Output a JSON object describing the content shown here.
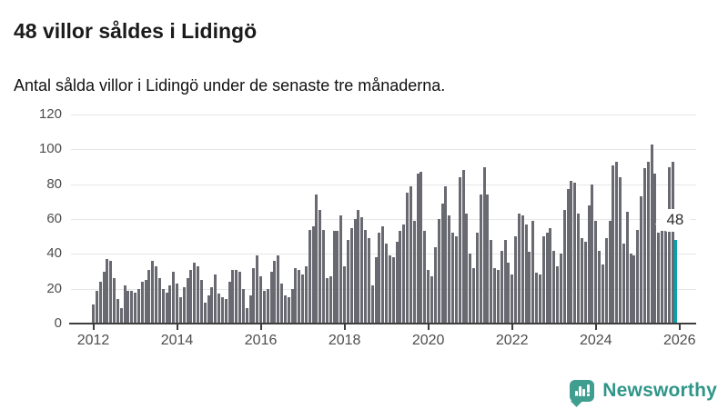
{
  "header": {
    "title": "48 villor såldes i Lidingö",
    "subtitle": "Antal sålda villor i Lidingö under de senaste tre månaderna."
  },
  "chart_data": {
    "type": "bar",
    "title": "48 villor såldes i Lidingö",
    "subtitle": "Antal sålda villor i Lidingö under de senaste tre månaderna.",
    "x_unit": "month",
    "x_start": "2012-01",
    "x_end": "2025-12",
    "values": [
      11,
      19,
      24,
      30,
      37,
      36,
      26,
      14,
      9,
      22,
      19,
      19,
      18,
      20,
      24,
      25,
      31,
      36,
      33,
      26,
      20,
      18,
      22,
      30,
      23,
      15,
      21,
      26,
      31,
      35,
      33,
      25,
      12,
      16,
      21,
      28,
      17,
      15,
      14,
      24,
      31,
      31,
      30,
      20,
      9,
      16,
      32,
      39,
      27,
      19,
      20,
      30,
      36,
      39,
      23,
      16,
      15,
      20,
      32,
      31,
      28,
      33,
      54,
      56,
      74,
      65,
      54,
      26,
      27,
      53,
      53,
      62,
      33,
      48,
      55,
      60,
      65,
      61,
      54,
      49,
      22,
      38,
      52,
      56,
      46,
      39,
      38,
      47,
      53,
      57,
      75,
      79,
      59,
      86,
      87,
      53,
      31,
      27,
      44,
      60,
      69,
      79,
      62,
      52,
      50,
      84,
      88,
      63,
      40,
      32,
      52,
      74,
      90,
      74,
      48,
      32,
      31,
      42,
      48,
      35,
      28,
      50,
      63,
      62,
      57,
      41,
      59,
      29,
      28,
      50,
      52,
      55,
      42,
      33,
      40,
      65,
      77,
      82,
      81,
      63,
      49,
      47,
      68,
      80,
      59,
      42,
      34,
      49,
      59,
      91,
      93,
      84,
      46,
      64,
      40,
      39,
      54,
      73,
      89,
      93,
      103,
      86,
      52,
      53,
      57,
      90,
      93,
      48
    ],
    "ylim": [
      0,
      120
    ],
    "y_ticks": [
      0,
      20,
      40,
      60,
      80,
      100,
      120
    ],
    "x_tick_years": [
      2012,
      2014,
      2016,
      2018,
      2020,
      2022,
      2024,
      2026
    ],
    "grid": true,
    "legend": false,
    "bar_color": "#696971",
    "highlight_index": 167,
    "highlight_color": "#00a5ad",
    "highlight_label": "48",
    "xlabel": "",
    "ylabel": ""
  },
  "footer": {
    "brand": "Newsworthy",
    "brand_color": "#2f9588",
    "icon": "newsworthy-speech-bubble-chart-icon"
  }
}
